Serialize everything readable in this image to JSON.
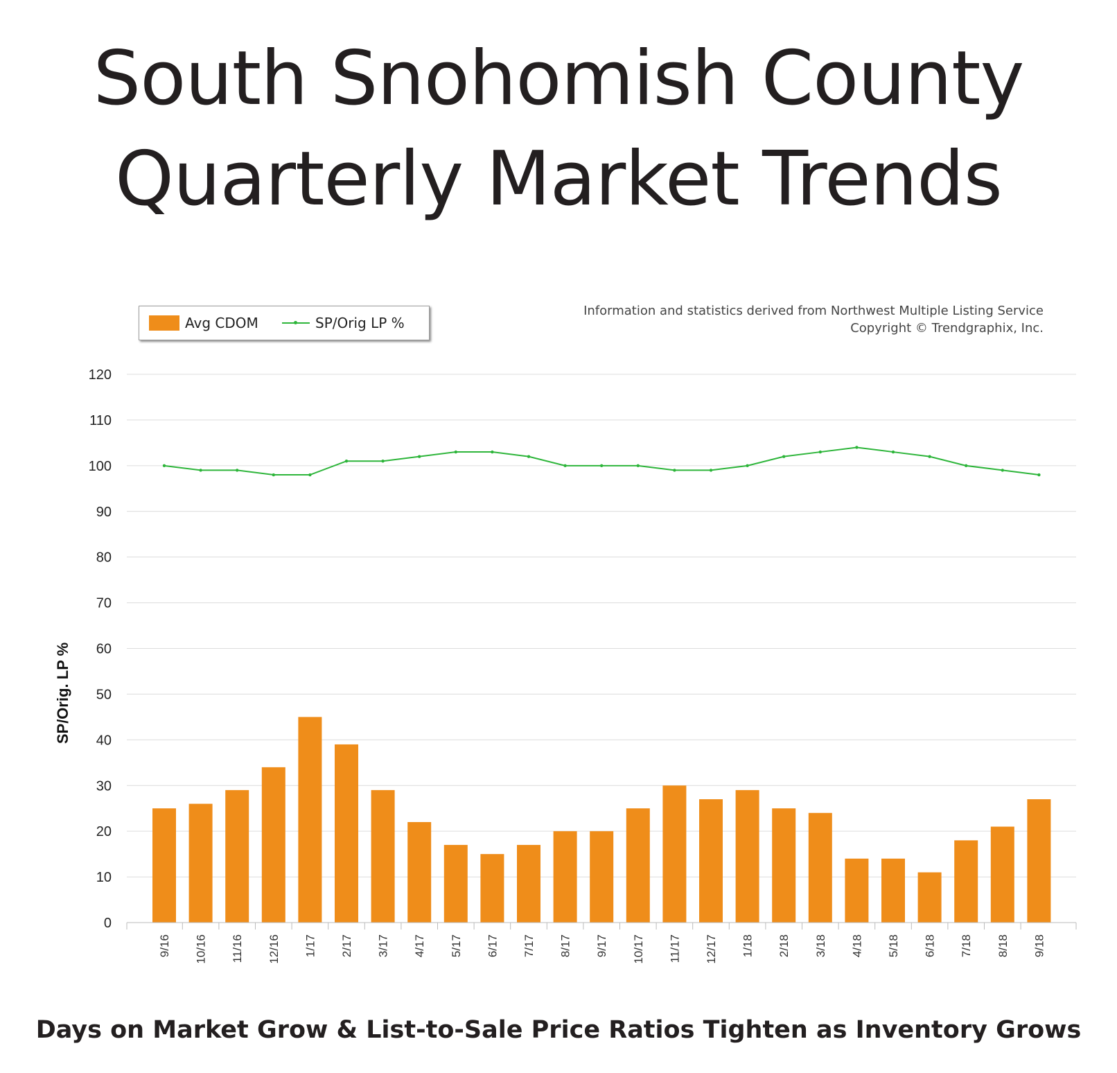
{
  "page": {
    "title_line1": "South Snohomish County",
    "title_line2": "Quarterly Market Trends",
    "subtitle": "Days on Market Grow & List-to-Sale Price Ratios Tighten as Inventory Grows",
    "source_line1": "Information and statistics derived from Northwest Multiple Listing Service",
    "source_line2": "Copyright © Trendgraphix, Inc."
  },
  "legend": {
    "bar_label": "Avg CDOM",
    "line_label": "SP/Orig LP %"
  },
  "colors": {
    "bar": "#ef8d1a",
    "line": "#2db53a",
    "grid": "#dcdcdc"
  },
  "chart_data": {
    "type": "bar",
    "title": "",
    "xlabel": "",
    "ylabel": "SP/Orig. LP %",
    "ylim": [
      0,
      120
    ],
    "yticks": [
      0,
      10,
      20,
      30,
      40,
      50,
      60,
      70,
      80,
      90,
      100,
      110,
      120
    ],
    "grid": true,
    "legend_position": "top-left",
    "categories": [
      "9/16",
      "10/16",
      "11/16",
      "12/16",
      "1/17",
      "2/17",
      "3/17",
      "4/17",
      "5/17",
      "6/17",
      "7/17",
      "8/17",
      "9/17",
      "10/17",
      "11/17",
      "12/17",
      "1/18",
      "2/18",
      "3/18",
      "4/18",
      "5/18",
      "6/18",
      "7/18",
      "8/18",
      "9/18"
    ],
    "series": [
      {
        "name": "Avg CDOM",
        "type": "bar",
        "values": [
          25,
          26,
          29,
          34,
          45,
          39,
          29,
          22,
          17,
          15,
          17,
          20,
          20,
          25,
          30,
          27,
          29,
          25,
          24,
          14,
          14,
          11,
          18,
          21,
          27
        ]
      },
      {
        "name": "SP/Orig LP %",
        "type": "line",
        "values": [
          100,
          99,
          99,
          98,
          98,
          101,
          101,
          102,
          103,
          103,
          102,
          100,
          100,
          100,
          99,
          99,
          100,
          102,
          103,
          104,
          103,
          102,
          100,
          99,
          98
        ]
      }
    ]
  }
}
